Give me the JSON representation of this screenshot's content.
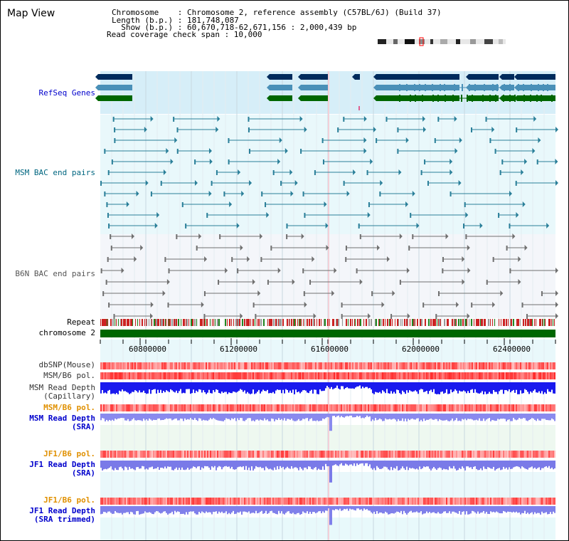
{
  "title": "Map View",
  "info": {
    "chromosome": "Chromosome    : Chromosome 2, reference assembly (C57BL/6J) (Build 37)",
    "length": "Length (b.p.) : 181,748,087",
    "show": "  Show (b.p.) : 60,670,718-62,671,156 : 2,000,439 bp",
    "coverage": "Read coverage check span : 10,000"
  },
  "tracks": {
    "refseq": "RefSeq Genes",
    "msm_bac": "MSM BAC end pairs",
    "b6n_bac": "B6N BAC end pairs",
    "repeat": "Repeat",
    "chromosome": "chromosome 2",
    "dbsnp": "dbSNP(Mouse)",
    "msm_b6_pol_1": "MSM/B6 pol.",
    "msm_depth_cap_1": "MSM Read Depth",
    "msm_depth_cap_2": "(Capillary)",
    "msm_b6_pol_2": "MSM/B6 pol.",
    "msm_depth_sra_1": "MSM Read Depth",
    "msm_depth_sra_2": "(SRA)",
    "jf1_b6_pol_1": "JF1/B6 pol.",
    "jf1_depth_sra_1": "JF1 Read Depth",
    "jf1_depth_sra_2": "(SRA)",
    "jf1_b6_pol_2": "JF1/B6 pol.",
    "jf1_depth_trim_1": "JF1 Read Depth",
    "jf1_depth_trim_2": "(SRA trimmed)"
  },
  "axis": {
    "ticks": [
      "60800000",
      "61200000",
      "61600000",
      "62000000",
      "62400000"
    ]
  },
  "colors": {
    "refseq_label": "#0000cc",
    "bac_label": "#006680",
    "b6n_label": "#555555",
    "gene_dark": "#002b5c",
    "gene_mid": "#4a90b8",
    "gene_green": "#006600",
    "pol_orange": "#e09000",
    "depth_blue": "#0000cc"
  }
}
